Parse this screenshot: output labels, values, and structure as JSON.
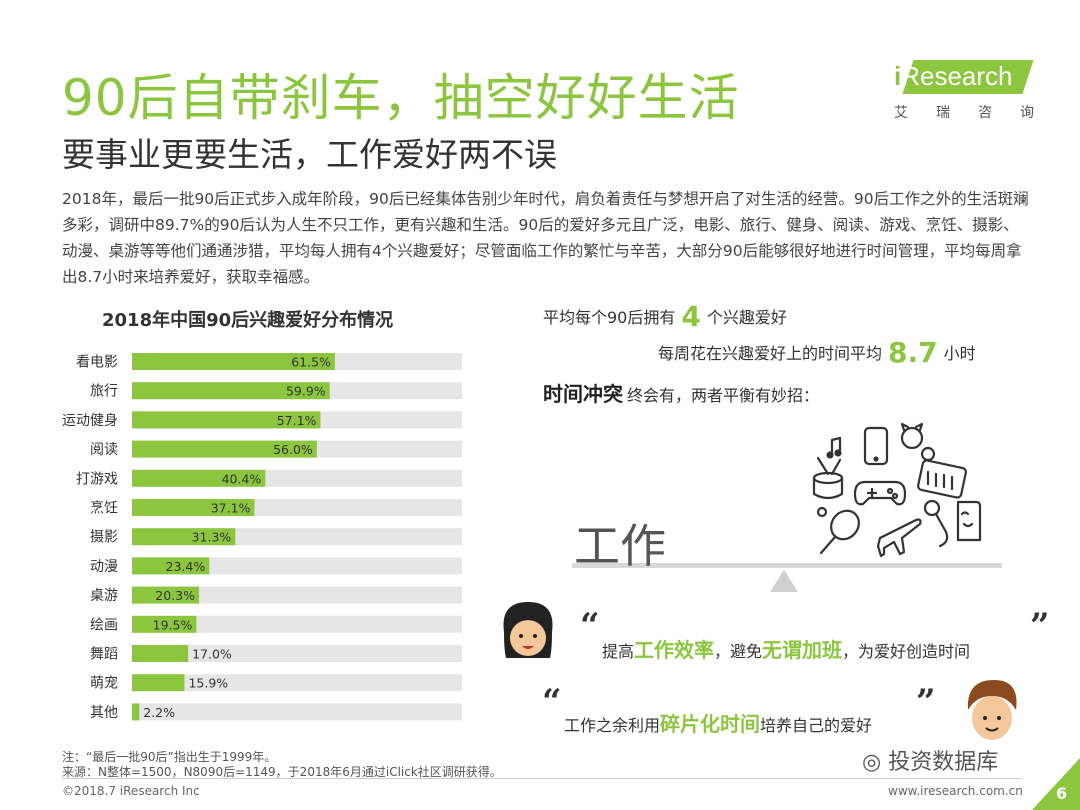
{
  "header": {
    "title": "90后自带刹车，抽空好好生活",
    "subtitle": "要事业更要生活，工作爱好两不误",
    "intro": "2018年，最后一批90后正式步入成年阶段，90后已经集体告别少年时代，肩负着责任与梦想开启了对生活的经营。90后工作之外的生活斑斓多彩，调研中89.7%的90后认为人生不只工作，更有兴趣和生活。90后的爱好多元且广泛，电影、旅行、健身、阅读、游戏、烹饪、摄影、动漫、桌游等等他们通通涉猎，平均每人拥有4个兴趣爱好；尽管面临工作的繁忙与辛苦，大部分90后能够很好地进行时间管理，平均每周拿出8.7小时来培养爱好，获取幸福感。"
  },
  "logo": {
    "prefix": "i",
    "name": "Research",
    "cn_chars": [
      "艾",
      "瑞",
      "咨",
      "询"
    ],
    "color": "#8cc63f"
  },
  "chart_data": {
    "type": "bar",
    "orientation": "horizontal",
    "title": "2018年中国90后兴趣爱好分布情况",
    "categories": [
      "看电影",
      "旅行",
      "运动健身",
      "阅读",
      "打游戏",
      "烹饪",
      "摄影",
      "动漫",
      "桌游",
      "绘画",
      "舞蹈",
      "萌宠",
      "其他"
    ],
    "values": [
      61.5,
      59.9,
      57.1,
      56.0,
      40.4,
      37.1,
      31.3,
      23.4,
      20.3,
      19.5,
      17.0,
      15.9,
      2.2
    ],
    "value_labels": [
      "61.5%",
      "59.9%",
      "57.1%",
      "56.0%",
      "40.4%",
      "37.1%",
      "31.3%",
      "23.4%",
      "20.3%",
      "19.5%",
      "17.0%",
      "15.9%",
      "2.2%"
    ],
    "xlim": [
      0,
      100
    ],
    "bar_color": "#8cc63f",
    "track_color": "#e6e6e6",
    "grid": false,
    "legend": "none"
  },
  "stats": {
    "hobby_prefix": "平均每个90后拥有",
    "hobby_value": "4",
    "hobby_suffix": "个兴趣爱好",
    "time_prefix": "每周花在兴趣爱好上的时间平均",
    "time_value": "8.7",
    "time_suffix": "小时"
  },
  "conflict": {
    "heading": "时间冲突",
    "text": "终会有，两者平衡有妙招："
  },
  "scale": {
    "work_label": "工作",
    "icons": [
      "music-note-icon",
      "phone-icon",
      "cat-toy-icon",
      "drum-icon",
      "gamepad-icon",
      "keyboard-icon",
      "tennis-racket-icon",
      "airplane-icon",
      "microphone-icon",
      "book-icon"
    ]
  },
  "quote1": {
    "p1": "提高",
    "h1": "工作效率",
    "p2": "，避免",
    "h2": "无谓加班",
    "p3": "，为爱好创造时间"
  },
  "quote2": {
    "p1": "工作之余利用",
    "h1": "碎片化时间",
    "p2": "培养自己的爱好"
  },
  "quote_marks": {
    "open": "“",
    "close": "”"
  },
  "notes": {
    "note": "注：“最后一批90后”指出生于1999年。",
    "source": "来源：N整体=1500，N8090后=1149，于2018年6月通过iClick社区调研获得。"
  },
  "footer": {
    "copyright": "©2018.7 iResearch Inc",
    "website": "www.iresearch.com.cn",
    "watermark": "投资数据库",
    "page": "6",
    "accent": "#8cc63f"
  }
}
